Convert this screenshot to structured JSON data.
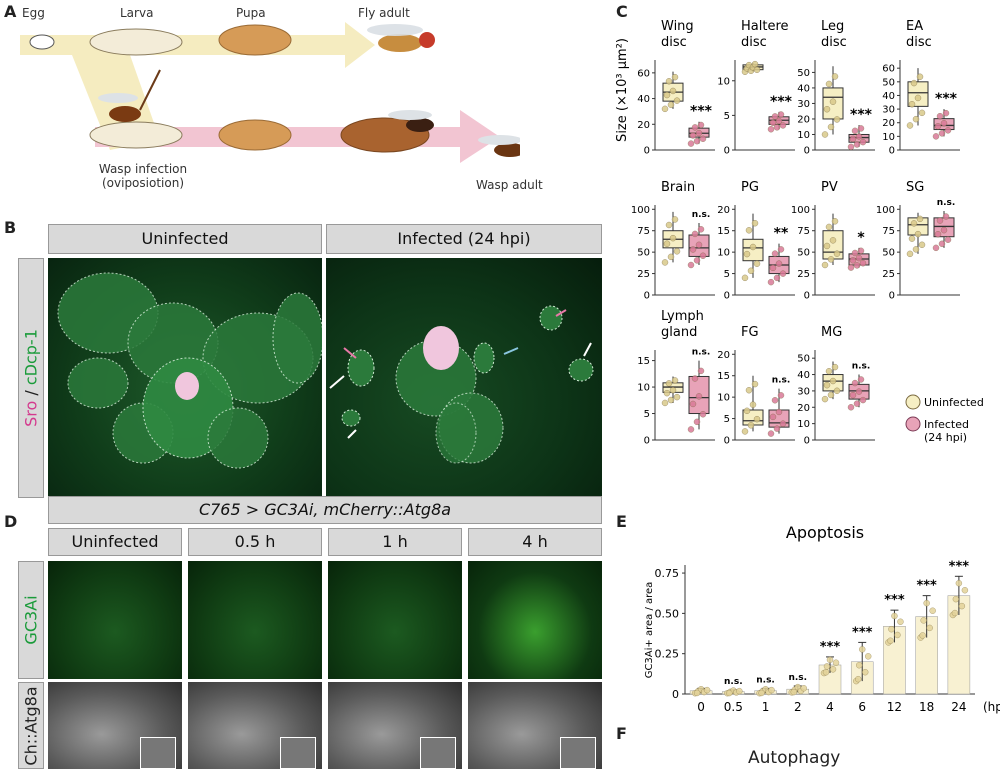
{
  "panels": {
    "A": {
      "letter": "A",
      "stages": {
        "egg": "Egg",
        "larva": "Larva",
        "pupa": "Pupa",
        "fly_adult": "Fly adult"
      },
      "infection": {
        "line1": "Wasp infection",
        "line2": "(oviposiotion)"
      },
      "wasp_adult": "Wasp adult"
    },
    "B": {
      "letter": "B",
      "uninfected": "Uninfected",
      "infected": "Infected (24 hpi)",
      "stain_sro": "Sro",
      "stain_sep": " / ",
      "stain_cdcp": "cDcp-1"
    },
    "C": {
      "letter": "C",
      "ylabel": "Size (×10³ μm²)",
      "legend_uninfected": "Uninfected",
      "legend_infected_line1": "Infected",
      "legend_infected_line2": "(24 hpi)",
      "colors": {
        "uninfected": "#f6efc4",
        "infected": "#e8a3b8",
        "uninfected_pt": "#d9c98a",
        "infected_pt": "#d97a98"
      }
    },
    "D": {
      "letter": "D",
      "genotype": "C765 > GC3Ai, mCherry::Atg8a",
      "cols": [
        "Uninfected",
        "0.5 h",
        "1 h",
        "4 h"
      ],
      "row1": "GC3Ai",
      "row2": "Ch::Atg8a"
    },
    "E": {
      "letter": "E"
    },
    "F": {
      "letter": "F",
      "title": "Autophagy"
    }
  },
  "chart_data": [
    {
      "type": "box",
      "title": "Wing disc",
      "title_lines": [
        "Wing",
        "disc"
      ],
      "ylim": [
        0,
        70
      ],
      "yticks": [
        0,
        20,
        40,
        60
      ],
      "uninfected": {
        "q1": 38,
        "median": 45,
        "q3": 52,
        "min": 32,
        "max": 61
      },
      "infected": {
        "q1": 10,
        "median": 13,
        "q3": 17,
        "min": 5,
        "max": 22
      },
      "sig": "***"
    },
    {
      "type": "box",
      "title": "Haltere disc",
      "title_lines": [
        "Haltere",
        "disc"
      ],
      "ylim": [
        0,
        13
      ],
      "yticks": [
        0,
        5,
        10
      ],
      "uninfected": {
        "q1": 11.6,
        "median": 12,
        "q3": 12.3,
        "min": 11.3,
        "max": 12.6
      },
      "infected": {
        "q1": 3.7,
        "median": 4.3,
        "q3": 4.8,
        "min": 3.0,
        "max": 5.5
      },
      "sig": "***"
    },
    {
      "type": "box",
      "title": "Leg disc",
      "title_lines": [
        "Leg",
        "disc"
      ],
      "ylim": [
        0,
        58
      ],
      "yticks": [
        0,
        10,
        20,
        30,
        40,
        50
      ],
      "uninfected": {
        "q1": 20,
        "median": 34,
        "q3": 40,
        "min": 10,
        "max": 54
      },
      "infected": {
        "q1": 5,
        "median": 8,
        "q3": 10,
        "min": 2,
        "max": 16
      },
      "sig": "***"
    },
    {
      "type": "box",
      "title": "EA disc",
      "title_lines": [
        "EA",
        "disc"
      ],
      "ylim": [
        0,
        66
      ],
      "yticks": [
        0,
        10,
        20,
        30,
        40,
        50,
        60
      ],
      "uninfected": {
        "q1": 32,
        "median": 42,
        "q3": 50,
        "min": 18,
        "max": 60
      },
      "infected": {
        "q1": 15,
        "median": 18,
        "q3": 23,
        "min": 10,
        "max": 30
      },
      "sig": "***"
    },
    {
      "type": "box",
      "title": "Brain",
      "title_lines": [
        "Brain"
      ],
      "ylim": [
        0,
        105
      ],
      "yticks": [
        0,
        25,
        50,
        75,
        100
      ],
      "uninfected": {
        "q1": 55,
        "median": 65,
        "q3": 75,
        "min": 38,
        "max": 97
      },
      "infected": {
        "q1": 45,
        "median": 55,
        "q3": 70,
        "min": 35,
        "max": 84
      },
      "sig": "n.s."
    },
    {
      "type": "box",
      "title": "PG",
      "title_lines": [
        "PG"
      ],
      "ylim": [
        0,
        21
      ],
      "yticks": [
        0,
        5,
        10,
        15,
        20
      ],
      "uninfected": {
        "q1": 8,
        "median": 11,
        "q3": 13,
        "min": 4,
        "max": 19
      },
      "infected": {
        "q1": 5,
        "median": 7,
        "q3": 9,
        "min": 3,
        "max": 12
      },
      "sig": "**"
    },
    {
      "type": "box",
      "title": "PV",
      "title_lines": [
        "PV"
      ],
      "ylim": [
        0,
        105
      ],
      "yticks": [
        0,
        25,
        50,
        75,
        100
      ],
      "uninfected": {
        "q1": 42,
        "median": 50,
        "q3": 75,
        "min": 35,
        "max": 95
      },
      "infected": {
        "q1": 35,
        "median": 42,
        "q3": 48,
        "min": 32,
        "max": 55
      },
      "sig": "*"
    },
    {
      "type": "box",
      "title": "SG",
      "title_lines": [
        "SG"
      ],
      "ylim": [
        0,
        105
      ],
      "yticks": [
        0,
        25,
        50,
        75,
        100
      ],
      "uninfected": {
        "q1": 70,
        "median": 82,
        "q3": 90,
        "min": 48,
        "max": 96
      },
      "infected": {
        "q1": 68,
        "median": 80,
        "q3": 90,
        "min": 55,
        "max": 98
      },
      "sig": "n.s."
    },
    {
      "type": "box",
      "title": "Lymph gland",
      "title_lines": [
        "Lymph",
        "gland"
      ],
      "ylim": [
        0,
        17
      ],
      "yticks": [
        0,
        5,
        10,
        15
      ],
      "uninfected": {
        "q1": 9,
        "median": 10,
        "q3": 10.8,
        "min": 7,
        "max": 12
      },
      "infected": {
        "q1": 5,
        "median": 8,
        "q3": 12,
        "min": 2,
        "max": 15
      },
      "sig": "n.s."
    },
    {
      "type": "box",
      "title": "FG",
      "title_lines": [
        "FG"
      ],
      "ylim": [
        0,
        21
      ],
      "yticks": [
        0,
        5,
        10,
        15,
        20
      ],
      "uninfected": {
        "q1": 3.5,
        "median": 4.5,
        "q3": 7,
        "min": 2,
        "max": 15
      },
      "infected": {
        "q1": 3,
        "median": 4,
        "q3": 7,
        "min": 1.5,
        "max": 12
      },
      "sig": "n.s."
    },
    {
      "type": "box",
      "title": "MG",
      "title_lines": [
        "MG"
      ],
      "ylim": [
        0,
        55
      ],
      "yticks": [
        0,
        10,
        20,
        30,
        40,
        50
      ],
      "uninfected": {
        "q1": 30,
        "median": 36,
        "q3": 40,
        "min": 25,
        "max": 48
      },
      "infected": {
        "q1": 25,
        "median": 30,
        "q3": 34,
        "min": 20,
        "max": 40
      },
      "sig": "n.s."
    },
    {
      "type": "bar",
      "title": "Apoptosis",
      "ylabel": "GC3Ai+ area / area",
      "xlabel": "(hpi)",
      "categories": [
        "0",
        "0.5",
        "1",
        "2",
        "4",
        "6",
        "12",
        "18",
        "24"
      ],
      "values": [
        0.02,
        0.015,
        0.02,
        0.03,
        0.18,
        0.2,
        0.42,
        0.48,
        0.61
      ],
      "errors": [
        0.015,
        0.01,
        0.015,
        0.02,
        0.05,
        0.12,
        0.1,
        0.13,
        0.12
      ],
      "sig": [
        "",
        "n.s.",
        "n.s.",
        "n.s.",
        "***",
        "***",
        "***",
        "***",
        "***"
      ],
      "ylim": [
        0,
        0.8
      ],
      "yticks": [
        "0",
        "0.25",
        "0.50",
        "0.75"
      ],
      "ytick_values": [
        0,
        0.25,
        0.5,
        0.75
      ]
    }
  ]
}
